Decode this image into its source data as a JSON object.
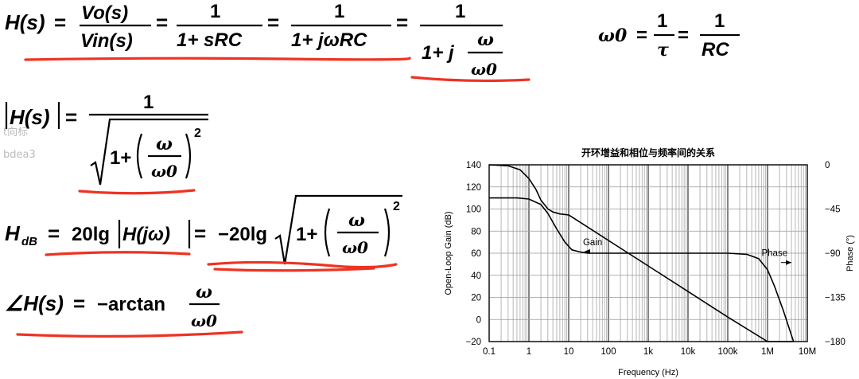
{
  "formulas": {
    "transfer": {
      "lhs": "H(s)",
      "eq": "=",
      "f1_num": "Vo(s)",
      "f1_den": "Vin(s)",
      "one": "1",
      "f2_den": "1+ sRC",
      "f3_den": "1+ jωRC",
      "f4_den_a": "1+ j",
      "omega": "ω",
      "omega0": "ω0"
    },
    "cutoff": {
      "lhs": "ω0",
      "eq": "=",
      "one": "1",
      "tau": "τ",
      "rc": "RC"
    },
    "magnitude": {
      "lhs": "H(s)",
      "eq": "=",
      "one": "1",
      "one_plus": "1+",
      "omega": "ω",
      "omega0": "ω0",
      "exp": "2"
    },
    "db": {
      "lhs": "H",
      "sub": "dB",
      "eq": "=",
      "a": "20lg",
      "hj": "H(jω)",
      "b": "−20lg",
      "one_plus": "1+",
      "omega": "ω",
      "omega0": "ω0",
      "exp": "2"
    },
    "phase": {
      "lhs": "∠H(s)",
      "eq": "=",
      "rhs": "−arctan",
      "omega": "ω",
      "omega0": "ω0"
    }
  },
  "ghost_text": [
    "t向标",
    "bdea3"
  ],
  "chart_data": {
    "type": "line",
    "title": "开环增益和相位与频率间的关系",
    "xlabel": "Frequency (Hz)",
    "ylabel": "Open-Loop Gain (dB)",
    "y2label": "Phase (°)",
    "xscale": "log",
    "xlim": [
      0.1,
      10000000
    ],
    "ylim": [
      -20,
      140
    ],
    "y2lim": [
      -180,
      0
    ],
    "x_ticks": [
      {
        "v": 0.1,
        "label": "0.1"
      },
      {
        "v": 1,
        "label": "1"
      },
      {
        "v": 10,
        "label": "10"
      },
      {
        "v": 100,
        "label": "100"
      },
      {
        "v": 1000,
        "label": "1k"
      },
      {
        "v": 10000,
        "label": "10k"
      },
      {
        "v": 100000,
        "label": "100k"
      },
      {
        "v": 1000000,
        "label": "1M"
      },
      {
        "v": 10000000,
        "label": "10M"
      }
    ],
    "y_ticks": [
      -20,
      0,
      20,
      40,
      60,
      80,
      100,
      120,
      140
    ],
    "y2_ticks": [
      {
        "v": -180,
        "label": "−180"
      },
      {
        "v": -135,
        "label": "−135"
      },
      {
        "v": -90,
        "label": "−90"
      },
      {
        "v": -45,
        "label": "−45"
      },
      {
        "v": 0,
        "label": "0"
      }
    ],
    "grid": true,
    "series": [
      {
        "name": "Gain",
        "axis": "left",
        "x": [
          0.1,
          0.5,
          1,
          2,
          3,
          5,
          8,
          12,
          20,
          30,
          50,
          100,
          1000,
          10000,
          100000,
          300000,
          600000,
          1000000,
          1500000,
          2500000,
          4500000
        ],
        "y": [
          110,
          110,
          109,
          104,
          96,
          82,
          70,
          63,
          61,
          60,
          60,
          60,
          60,
          60,
          60,
          59,
          55,
          45,
          30,
          8,
          -20
        ]
      },
      {
        "name": "Phase",
        "axis": "right",
        "x": [
          0.1,
          0.3,
          0.6,
          1,
          1.5,
          2,
          3,
          4,
          6,
          10,
          100,
          1000,
          10000,
          100000,
          1000000,
          3000000,
          4500000
        ],
        "y": [
          0,
          -1,
          -5,
          -14,
          -25,
          -36,
          -45,
          -48,
          -50,
          -51,
          -77,
          -103,
          -129,
          -155,
          -180,
          -180,
          -180
        ]
      }
    ],
    "annotations": [
      {
        "text": "Gain",
        "x": 40,
        "y": 63,
        "arrow_to": [
          25,
          62
        ]
      },
      {
        "text": "Phase",
        "x": 1500000,
        "y": 53,
        "arrow_to": [
          4000000,
          53
        ]
      }
    ]
  }
}
